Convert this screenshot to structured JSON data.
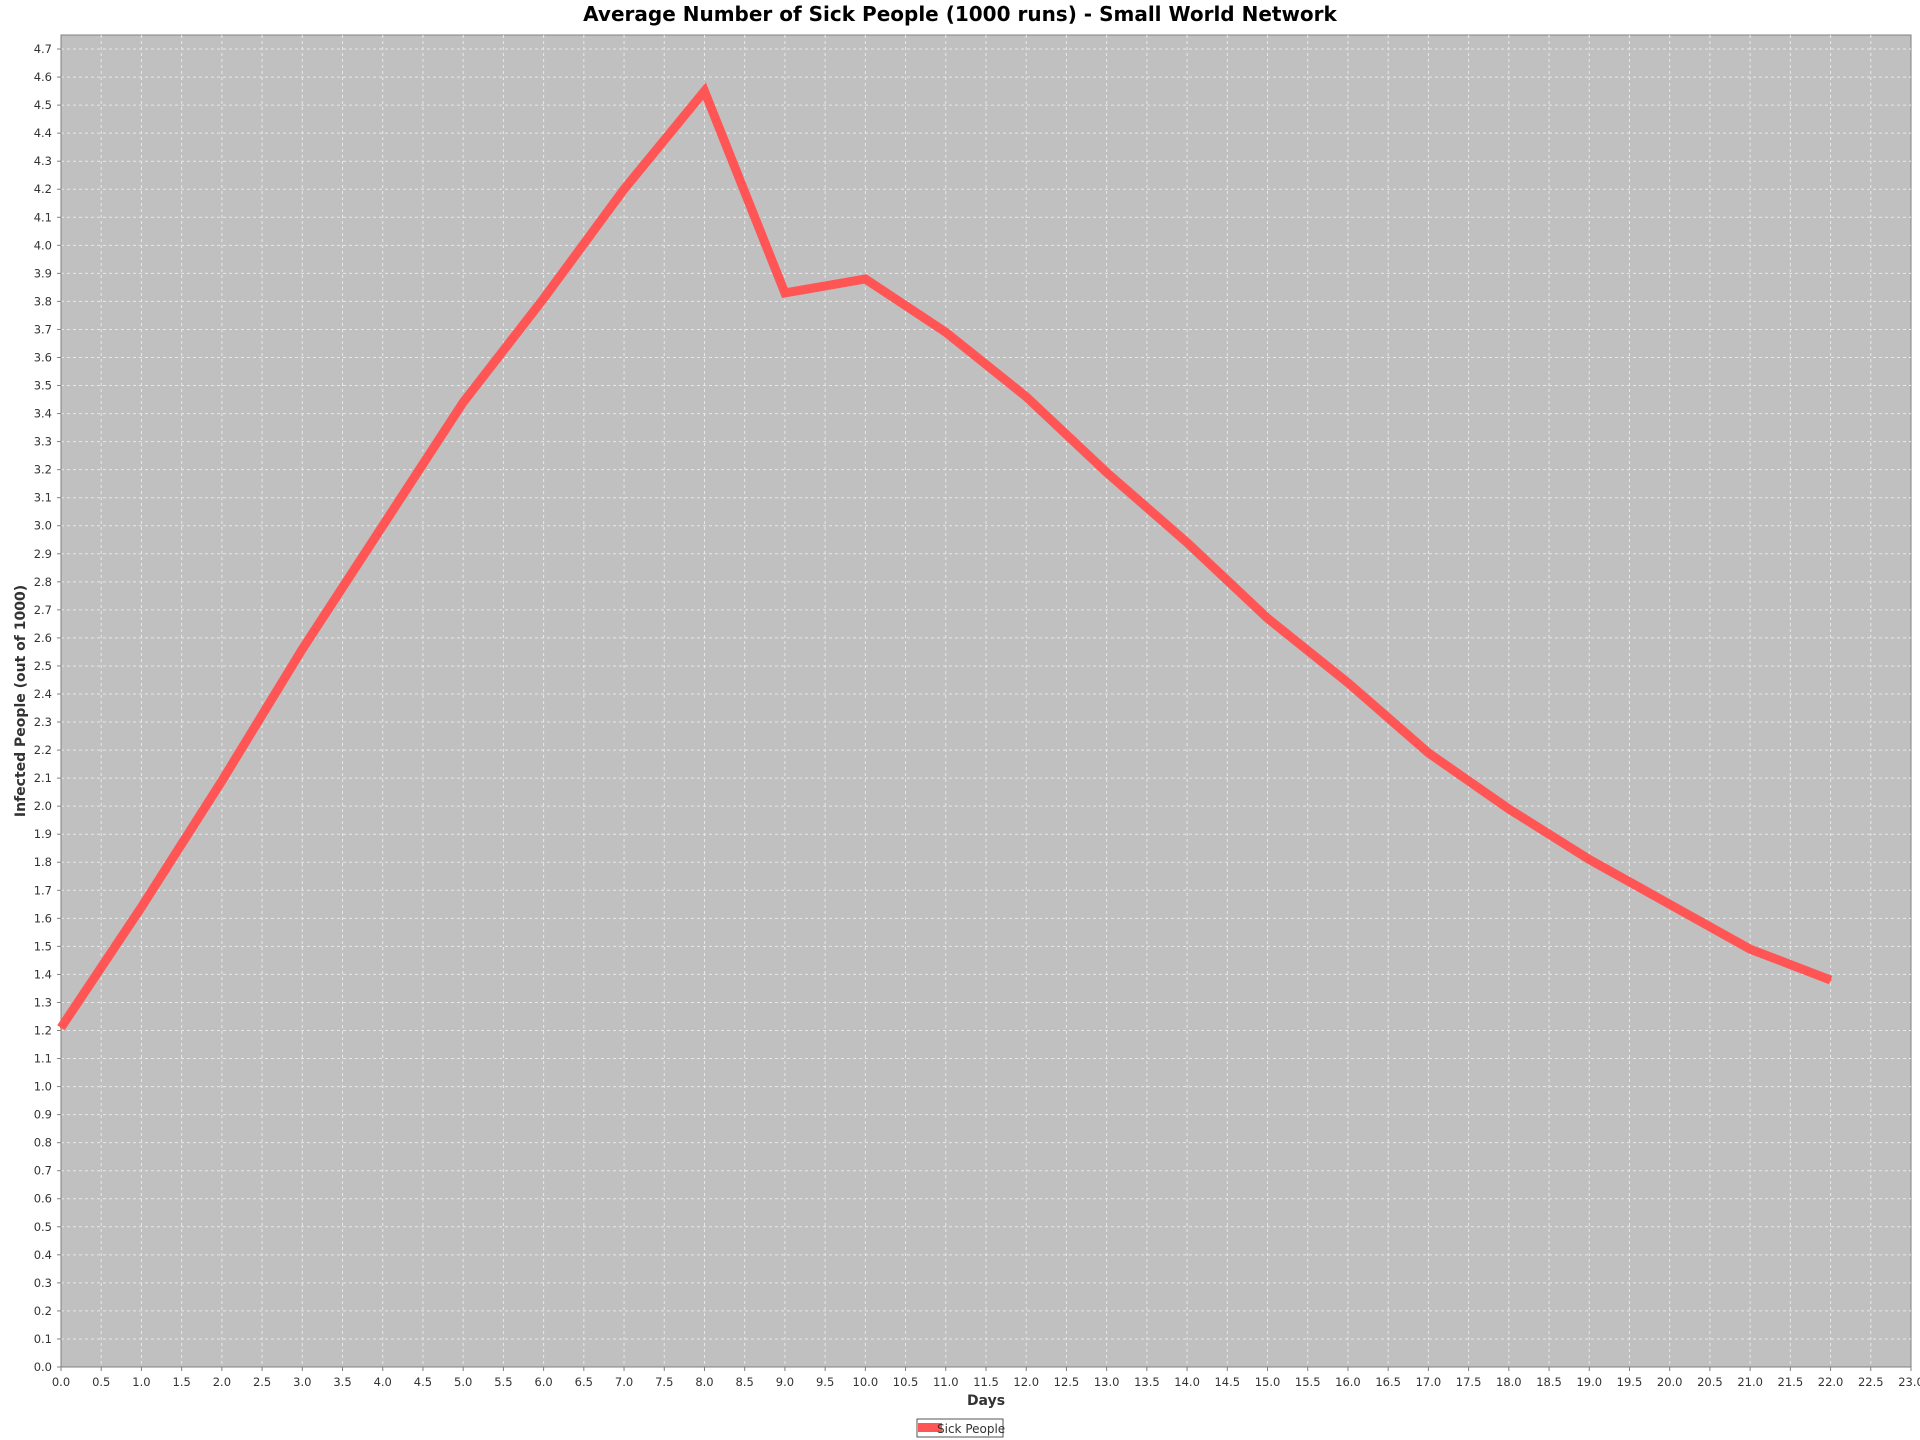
{
  "chart_data": {
    "type": "line",
    "title": "Average Number of Sick People (1000 runs) - Small World Network",
    "xlabel": "Days",
    "ylabel": "Infected People (out of 1000)",
    "xlim": [
      0,
      23
    ],
    "ylim": [
      0,
      4.75
    ],
    "x_tick_step": 0.5,
    "y_tick_step": 0.1,
    "grid": true,
    "legend_position": "bottom-center",
    "colors": {
      "plot_background": "#c0c0c0",
      "gridline": "#e8e8e8",
      "series": "#ff5555",
      "axis_line": "#808080"
    },
    "series": [
      {
        "name": "Sick People",
        "x": [
          0,
          1,
          2,
          3,
          4,
          5,
          6,
          7,
          8,
          9,
          10,
          11,
          12,
          13,
          14,
          15,
          16,
          17,
          18,
          19,
          20,
          21,
          22
        ],
        "values": [
          1.21,
          1.64,
          2.09,
          2.56,
          3.0,
          3.44,
          3.81,
          4.2,
          4.55,
          3.83,
          3.88,
          3.69,
          3.46,
          3.19,
          2.94,
          2.67,
          2.44,
          2.19,
          1.99,
          1.81,
          1.65,
          1.49,
          1.38
        ]
      }
    ]
  }
}
